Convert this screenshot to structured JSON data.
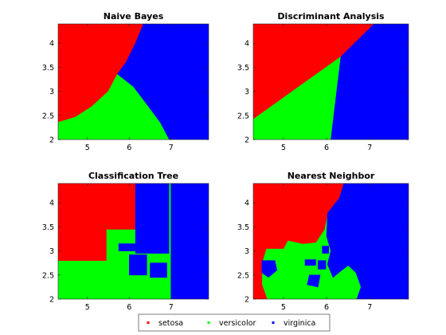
{
  "colors": {
    "setosa": "#ff0000",
    "versicolor": "#00ff00",
    "virginica": "#0000ff"
  },
  "legend": {
    "placement": "bottom-center",
    "entries": [
      {
        "label": "setosa",
        "color": "#ff0000"
      },
      {
        "label": "versicolor",
        "color": "#00ff00"
      },
      {
        "label": "virginica",
        "color": "#0000ff"
      }
    ]
  },
  "chart_data": [
    {
      "type": "heatmap",
      "title": "Naive Bayes",
      "xlim": [
        4.3,
        7.9
      ],
      "ylim": [
        2.0,
        4.4
      ],
      "xticks": [
        "5",
        "6",
        "7"
      ],
      "xtick_values": [
        5,
        6,
        7
      ],
      "yticks": [
        "2",
        "2.5",
        "3",
        "3.5",
        "4"
      ],
      "ytick_values": [
        2,
        2.5,
        3,
        3.5,
        4
      ],
      "regions": [
        {
          "class": "setosa",
          "polygon": [
            [
              4.3,
              4.4
            ],
            [
              6.34,
              4.4
            ],
            [
              6.15,
              4.0
            ],
            [
              5.92,
              3.6
            ],
            [
              5.72,
              3.36
            ],
            [
              5.5,
              3.0
            ],
            [
              5.1,
              2.68
            ],
            [
              4.7,
              2.46
            ],
            [
              4.3,
              2.36
            ]
          ]
        },
        {
          "class": "versicolor",
          "polygon": [
            [
              4.3,
              2.36
            ],
            [
              4.7,
              2.46
            ],
            [
              5.1,
              2.68
            ],
            [
              5.5,
              3.0
            ],
            [
              5.72,
              3.36
            ],
            [
              6.1,
              3.1
            ],
            [
              6.45,
              2.7
            ],
            [
              6.75,
              2.35
            ],
            [
              6.96,
              2.0
            ],
            [
              4.3,
              2.0
            ]
          ]
        },
        {
          "class": "virginica",
          "polygon": [
            [
              6.34,
              4.4
            ],
            [
              7.9,
              4.4
            ],
            [
              7.9,
              2.0
            ],
            [
              6.96,
              2.0
            ],
            [
              6.75,
              2.35
            ],
            [
              6.45,
              2.7
            ],
            [
              6.1,
              3.1
            ],
            [
              5.72,
              3.36
            ],
            [
              5.92,
              3.6
            ],
            [
              6.15,
              4.0
            ]
          ]
        }
      ]
    },
    {
      "type": "heatmap",
      "title": "Discriminant Analysis",
      "xlim": [
        4.3,
        7.9
      ],
      "ylim": [
        2.0,
        4.4
      ],
      "xticks": [
        "5",
        "6",
        "7"
      ],
      "xtick_values": [
        5,
        6,
        7
      ],
      "yticks": [
        "2",
        "2.5",
        "3",
        "3.5",
        "4"
      ],
      "ytick_values": [
        2,
        2.5,
        3,
        3.5,
        4
      ],
      "regions": [
        {
          "class": "setosa",
          "polygon": [
            [
              4.3,
              4.4
            ],
            [
              7.1,
              4.4
            ],
            [
              6.33,
              3.72
            ],
            [
              4.3,
              2.42
            ]
          ]
        },
        {
          "class": "versicolor",
          "polygon": [
            [
              4.3,
              2.42
            ],
            [
              6.33,
              3.72
            ],
            [
              6.1,
              2.0
            ],
            [
              4.3,
              2.0
            ]
          ]
        },
        {
          "class": "virginica",
          "polygon": [
            [
              7.1,
              4.4
            ],
            [
              7.9,
              4.4
            ],
            [
              7.9,
              2.0
            ],
            [
              6.1,
              2.0
            ],
            [
              6.33,
              3.72
            ]
          ]
        }
      ]
    },
    {
      "type": "heatmap",
      "title": "Classification Tree",
      "xlim": [
        4.3,
        7.9
      ],
      "ylim": [
        2.0,
        4.4
      ],
      "xticks": [
        "5",
        "6",
        "7"
      ],
      "xtick_values": [
        5,
        6,
        7
      ],
      "yticks": [
        "2",
        "2.5",
        "3",
        "3.5",
        "4"
      ],
      "ytick_values": [
        2,
        2.5,
        3,
        3.5,
        4
      ],
      "regions": [
        {
          "class": "versicolor",
          "polygon": [
            [
              4.3,
              2.0
            ],
            [
              7.0,
              2.0
            ],
            [
              7.0,
              4.4
            ],
            [
              4.3,
              4.4
            ]
          ]
        },
        {
          "class": "setosa",
          "polygon": [
            [
              4.3,
              4.4
            ],
            [
              6.15,
              4.4
            ],
            [
              6.15,
              3.45
            ],
            [
              5.45,
              3.45
            ],
            [
              5.45,
              2.8
            ],
            [
              4.3,
              2.8
            ]
          ]
        },
        {
          "class": "virginica",
          "polygon": [
            [
              6.15,
              4.4
            ],
            [
              6.95,
              4.4
            ],
            [
              6.95,
              2.95
            ],
            [
              6.15,
              2.95
            ],
            [
              6.15,
              3.0
            ],
            [
              5.75,
              3.0
            ],
            [
              5.75,
              3.15
            ],
            [
              6.15,
              3.15
            ]
          ]
        },
        {
          "class": "virginica",
          "polygon": [
            [
              6.58,
              3.7
            ],
            [
              6.78,
              3.7
            ],
            [
              6.78,
              3.45
            ],
            [
              6.58,
              3.45
            ]
          ]
        },
        {
          "class": "virginica",
          "polygon": [
            [
              6.0,
              2.92
            ],
            [
              6.42,
              2.92
            ],
            [
              6.42,
              2.5
            ],
            [
              6.0,
              2.5
            ]
          ]
        },
        {
          "class": "virginica",
          "polygon": [
            [
              6.5,
              2.75
            ],
            [
              6.9,
              2.75
            ],
            [
              6.9,
              2.45
            ],
            [
              6.5,
              2.45
            ]
          ]
        },
        {
          "class": "virginica",
          "polygon": [
            [
              7.0,
              2.0
            ],
            [
              7.9,
              2.0
            ],
            [
              7.9,
              4.4
            ],
            [
              7.0,
              4.4
            ]
          ]
        }
      ]
    },
    {
      "type": "heatmap",
      "title": "Nearest Neighbor",
      "xlim": [
        4.3,
        7.9
      ],
      "ylim": [
        2.0,
        4.4
      ],
      "xticks": [
        "5",
        "6",
        "7"
      ],
      "xtick_values": [
        5,
        6,
        7
      ],
      "yticks": [
        "2",
        "2.5",
        "3",
        "3.5",
        "4"
      ],
      "ytick_values": [
        2,
        2.5,
        3,
        3.5,
        4
      ],
      "regions": [
        {
          "class": "versicolor",
          "polygon": [
            [
              4.3,
              2.0
            ],
            [
              7.9,
              2.0
            ],
            [
              7.9,
              4.4
            ],
            [
              4.3,
              4.4
            ]
          ]
        },
        {
          "class": "setosa",
          "polygon": [
            [
              4.3,
              4.4
            ],
            [
              6.4,
              4.4
            ],
            [
              6.3,
              4.1
            ],
            [
              6.02,
              3.78
            ],
            [
              5.95,
              3.45
            ],
            [
              5.75,
              3.18
            ],
            [
              5.45,
              3.15
            ],
            [
              5.1,
              3.22
            ],
            [
              5.0,
              3.05
            ],
            [
              4.6,
              3.05
            ],
            [
              4.5,
              2.75
            ],
            [
              4.5,
              2.3
            ],
            [
              4.62,
              2.0
            ],
            [
              4.3,
              2.0
            ]
          ]
        },
        {
          "class": "virginica",
          "polygon": [
            [
              6.4,
              4.4
            ],
            [
              7.9,
              4.4
            ],
            [
              7.9,
              2.0
            ],
            [
              6.7,
              2.0
            ],
            [
              6.8,
              2.25
            ],
            [
              6.68,
              2.55
            ],
            [
              6.5,
              2.7
            ],
            [
              6.35,
              2.6
            ],
            [
              6.15,
              2.45
            ],
            [
              6.02,
              2.72
            ],
            [
              6.1,
              3.0
            ],
            [
              6.0,
              3.3
            ],
            [
              6.02,
              3.78
            ],
            [
              6.3,
              4.1
            ]
          ]
        },
        {
          "class": "virginica",
          "polygon": [
            [
              4.5,
              2.8
            ],
            [
              4.8,
              2.8
            ],
            [
              4.85,
              2.6
            ],
            [
              4.65,
              2.45
            ],
            [
              4.5,
              2.55
            ]
          ]
        },
        {
          "class": "virginica",
          "polygon": [
            [
              5.5,
              2.82
            ],
            [
              5.75,
              2.82
            ],
            [
              5.75,
              2.7
            ],
            [
              5.5,
              2.7
            ]
          ]
        },
        {
          "class": "virginica",
          "polygon": [
            [
              5.8,
              2.8
            ],
            [
              5.98,
              2.8
            ],
            [
              5.98,
              2.62
            ],
            [
              5.8,
              2.62
            ]
          ]
        },
        {
          "class": "virginica",
          "polygon": [
            [
              5.9,
              3.1
            ],
            [
              6.05,
              3.1
            ],
            [
              6.05,
              2.95
            ],
            [
              5.9,
              2.95
            ]
          ]
        },
        {
          "class": "virginica",
          "polygon": [
            [
              5.6,
              2.5
            ],
            [
              5.85,
              2.5
            ],
            [
              5.8,
              2.25
            ],
            [
              5.55,
              2.3
            ]
          ]
        },
        {
          "class": "virginica",
          "polygon": [
            [
              6.3,
              3.1
            ],
            [
              6.55,
              3.1
            ],
            [
              6.55,
              2.9
            ],
            [
              6.3,
              2.9
            ]
          ]
        }
      ]
    }
  ]
}
